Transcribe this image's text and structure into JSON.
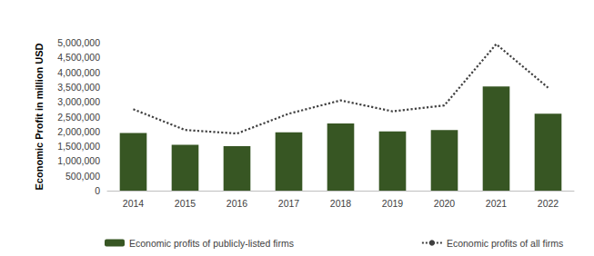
{
  "chart_data": {
    "type": "bar",
    "y_label": "Economic Profit in million USD",
    "categories": [
      "2014",
      "2015",
      "2016",
      "2017",
      "2018",
      "2019",
      "2020",
      "2021",
      "2022"
    ],
    "series": [
      {
        "name": "Economic profits of publicly-listed firms",
        "type": "bar",
        "color": "#375623",
        "values": [
          1950000,
          1550000,
          1500000,
          1970000,
          2270000,
          2000000,
          2050000,
          3520000,
          2600000
        ]
      },
      {
        "name": "Economic profits of all firms",
        "type": "line",
        "color": "#404040",
        "line_style": "dotted",
        "marker": "none",
        "values": [
          2750000,
          2050000,
          1930000,
          2600000,
          3050000,
          2680000,
          2880000,
          4950000,
          3480000
        ]
      }
    ],
    "ylim": [
      0,
      5000000
    ],
    "yticks": [
      0,
      {
        "value": 500000,
        "label": "500,000"
      },
      {
        "value": 1000000,
        "label": "1,000,000"
      },
      {
        "value": 1500000,
        "label": "1,500,000"
      },
      {
        "value": 2000000,
        "label": "2,000,000"
      },
      {
        "value": 2500000,
        "label": "2,500,000"
      },
      {
        "value": 3000000,
        "label": "3,000,000"
      },
      {
        "value": 3500000,
        "label": "3,500,000"
      },
      {
        "value": 4000000,
        "label": "4,000,000"
      },
      {
        "value": 4500000,
        "label": "4,500,000"
      },
      {
        "value": 5000000,
        "label": "5,000,000"
      }
    ],
    "grid": false,
    "legend": "bottom"
  }
}
